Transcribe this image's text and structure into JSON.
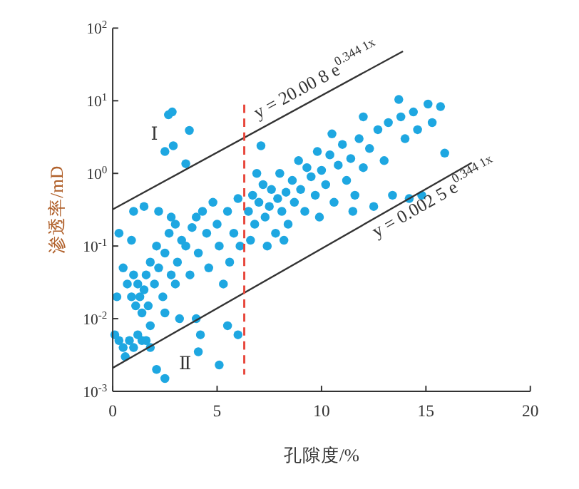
{
  "chart_data": {
    "type": "scatter",
    "xlabel": "孔隙度/%",
    "ylabel": "渗透率/mD",
    "log": "y",
    "grid": false,
    "xlim": [
      0,
      20
    ],
    "xticks": [
      0,
      5,
      10,
      15,
      20
    ],
    "ylim": [
      0.001,
      100
    ],
    "yticks": [
      {
        "value": 0.001,
        "label": "10$^{-3}$"
      },
      {
        "value": 0.01,
        "label": "10$^{-2}$"
      },
      {
        "value": 0.1,
        "label": "10$^{-1}$"
      },
      {
        "value": 1,
        "label": "10$^{0}$"
      },
      {
        "value": 10,
        "label": "10$^{1}$"
      },
      {
        "value": 100,
        "label": "10$^{2}$"
      }
    ],
    "series": [
      {
        "marker": "circle",
        "color": "#1ea7e1",
        "x": [
          0.2,
          0.3,
          0.5,
          0.6,
          0.8,
          1.0,
          1.2,
          1.4,
          1.6,
          1.8,
          0.5,
          0.7,
          0.9,
          1.0,
          1.1,
          1.2,
          1.3,
          1.4,
          1.5,
          1.6,
          1.7,
          1.8,
          2.0,
          2.1,
          2.2,
          2.4,
          2.5,
          2.7,
          2.8,
          3.0,
          3.1,
          3.3,
          3.5,
          3.7,
          3.8,
          4.0,
          4.1,
          4.3,
          4.5,
          4.6,
          4.8,
          5.0,
          5.1,
          5.3,
          5.5,
          5.6,
          5.8,
          6.0,
          6.1,
          1.0,
          1.5,
          2.2,
          2.8,
          0.3,
          0.9,
          1.8,
          2.5,
          3.2,
          4.0,
          4.2,
          5.5,
          6.0,
          2.1,
          2.5,
          5.1,
          4.1,
          3.0,
          0.1,
          2.67,
          2.85,
          3.67,
          2.5,
          2.9,
          3.5,
          6.5,
          6.7,
          6.8,
          7.0,
          7.1,
          7.2,
          7.3,
          7.5,
          7.6,
          7.8,
          7.9,
          8.0,
          8.1,
          8.3,
          8.4,
          8.6,
          8.7,
          8.9,
          9.0,
          9.2,
          9.3,
          9.5,
          9.7,
          9.8,
          10.0,
          10.2,
          10.4,
          10.6,
          10.8,
          11.0,
          11.2,
          11.4,
          11.6,
          11.8,
          12.0,
          12.3,
          12.5,
          12.7,
          13.0,
          13.2,
          13.4,
          13.7,
          13.8,
          14.0,
          14.2,
          14.4,
          14.6,
          14.8,
          15.1,
          15.3,
          15.7,
          15.9,
          6.6,
          7.4,
          8.2,
          6.9,
          10.5,
          12.0,
          11.5,
          9.9
        ],
        "values": [
          0.02,
          0.005,
          0.004,
          0.003,
          0.005,
          0.004,
          0.006,
          0.005,
          0.005,
          0.004,
          0.05,
          0.03,
          0.02,
          0.04,
          0.015,
          0.03,
          0.02,
          0.012,
          0.025,
          0.04,
          0.015,
          0.06,
          0.03,
          0.1,
          0.05,
          0.02,
          0.08,
          0.15,
          0.04,
          0.2,
          0.06,
          0.12,
          0.1,
          0.04,
          0.18,
          0.25,
          0.08,
          0.3,
          0.15,
          0.05,
          0.4,
          0.2,
          0.1,
          0.03,
          0.3,
          0.06,
          0.15,
          0.45,
          0.1,
          0.3,
          0.35,
          0.3,
          0.25,
          0.15,
          0.12,
          0.008,
          0.012,
          0.01,
          0.01,
          0.006,
          0.008,
          0.006,
          0.002,
          0.0015,
          0.0023,
          0.0035,
          0.03,
          0.006,
          6.4,
          7,
          3.9,
          2.0,
          2.4,
          1.36,
          0.3,
          0.5,
          0.2,
          0.4,
          2.4,
          0.7,
          0.25,
          0.35,
          0.6,
          0.15,
          0.45,
          1.0,
          0.3,
          0.55,
          0.2,
          0.8,
          0.4,
          1.5,
          0.6,
          0.3,
          1.2,
          0.9,
          0.5,
          2.0,
          1.1,
          0.7,
          1.8,
          0.4,
          1.3,
          2.5,
          0.8,
          1.6,
          0.5,
          3,
          1.2,
          2.2,
          0.35,
          4,
          1.5,
          5,
          0.5,
          10.4,
          6,
          3,
          0.45,
          7,
          4,
          0.5,
          9,
          5,
          8.3,
          1.9,
          0.12,
          0.1,
          0.12,
          1.0,
          3.5,
          6,
          0.3,
          0.25
        ]
      },
      {
        "type": "line",
        "marker": "none",
        "color": "#333333",
        "x": [
          0,
          13.9
        ],
        "values": [
          0.32,
          48
        ]
      },
      {
        "type": "line",
        "marker": "none",
        "color": "#333333",
        "x": [
          0,
          17.2
        ],
        "values": [
          0.0021,
          1.4
        ]
      }
    ],
    "ref_lines": [
      {
        "axis": "x",
        "value": 6.3,
        "color": "#e8473c",
        "line_style": "dashed"
      }
    ],
    "annotations": [
      {
        "text": "y = 20.00 8 e$^{0.344 1x}$",
        "x": 10.1,
        "y": 12.4
      },
      {
        "text": "y = 0.002 5 e$^{0.344 1x}$",
        "x": 15.1,
        "y": 0.64
      },
      "Ⅰ",
      "Ⅱ"
    ]
  }
}
